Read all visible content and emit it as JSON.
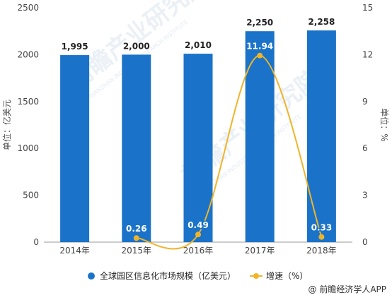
{
  "chart_data": {
    "type": "bar",
    "categories": [
      "2014年",
      "2015年",
      "2016年",
      "2017年",
      "2018年"
    ],
    "series": [
      {
        "name": "全球园区信息化市场规模（亿美元）",
        "type": "bar",
        "axis": "left",
        "values": [
          1995,
          2000,
          2010,
          2250,
          2258
        ],
        "labels": [
          "1,995",
          "2,000",
          "2,010",
          "2,250",
          "2,258"
        ],
        "color": "#1a73c8"
      },
      {
        "name": "增速（%）",
        "type": "line",
        "axis": "right",
        "values": [
          null,
          0.26,
          0.49,
          11.94,
          0.33
        ],
        "labels": [
          "",
          "0.26",
          "0.49",
          "11.94",
          "0.33"
        ],
        "color": "#f0b429"
      }
    ],
    "ylabel": "单位：亿美元",
    "y2label": "单位：%",
    "ylim": [
      0,
      2500
    ],
    "y2lim": [
      0,
      15
    ],
    "yticks": [
      "0",
      "500",
      "1000",
      "1500",
      "2000",
      "2500"
    ],
    "y2ticks": [
      "0",
      "3",
      "6",
      "9",
      "12",
      "15"
    ],
    "grid": false,
    "legend": "bottom"
  },
  "watermark": {
    "text": "前瞻产业研究院",
    "sub": "QIANZHAN INDUSTRY RESEARCH INSTITUTE"
  },
  "footer": {
    "source": "@ 前瞻经济学人APP"
  }
}
